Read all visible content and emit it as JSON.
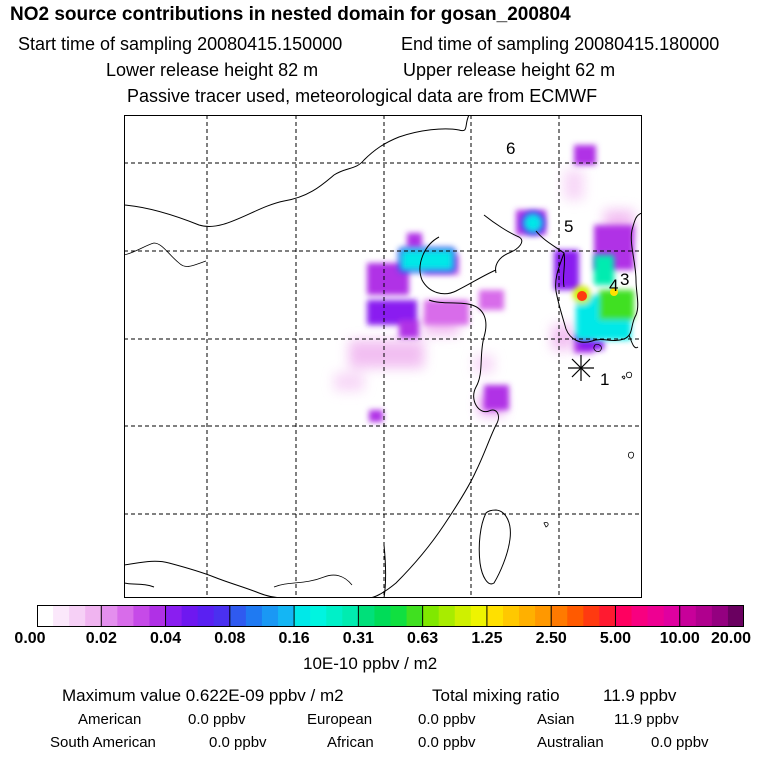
{
  "header": {
    "title": "NO2 source contributions in nested domain for gosan_200804",
    "start_label": "Start time of sampling 20080415.150000",
    "end_label": "End time of sampling 20080415.180000",
    "lower_height": "Lower release height   82 m",
    "upper_height": "Upper release height   62 m",
    "tracer_note": "Passive tracer used, meteorological data are from ECMWF"
  },
  "map": {
    "markers": [
      {
        "label": "1",
        "type": "receptor"
      },
      {
        "label": "3",
        "type": "source"
      },
      {
        "label": "4",
        "type": "source"
      },
      {
        "label": "5",
        "type": "source"
      },
      {
        "label": "6",
        "type": "source"
      }
    ]
  },
  "colorbar": {
    "ticks": [
      "0.00",
      "0.02",
      "0.04",
      "0.08",
      "0.16",
      "0.31",
      "0.63",
      "1.25",
      "2.50",
      "5.00",
      "10.00",
      "20.00"
    ],
    "colors": [
      "#ffffff",
      "#fbe8fb",
      "#f6d0f6",
      "#f0b4f0",
      "#e48fee",
      "#d86cea",
      "#c64ae8",
      "#b030e6",
      "#8a1ef0",
      "#6e18f0",
      "#5a20f2",
      "#4a30f0",
      "#2f5af0",
      "#1f7af2",
      "#1a98f4",
      "#14b6f4",
      "#00e8e8",
      "#00f4e0",
      "#00f0c8",
      "#00ecb0",
      "#00e07a",
      "#00dc58",
      "#10e040",
      "#40e020",
      "#80e800",
      "#a8ec00",
      "#cff000",
      "#eef400",
      "#ffe000",
      "#ffc800",
      "#ffb000",
      "#ff9800",
      "#ff7a00",
      "#ff5a00",
      "#ff3a10",
      "#ff1a30",
      "#ff0060",
      "#f80080",
      "#ee0092",
      "#e000a0",
      "#c8009a",
      "#b0008e",
      "#940080",
      "#6a0060"
    ],
    "units": "10E-10 ppbv / m2"
  },
  "footer": {
    "max_value": "Maximum value  0.622E-09 ppbv / m2",
    "total_label": "Total mixing ratio",
    "total_value": "11.9 ppbv",
    "regions": [
      {
        "name": "American",
        "value": "0.0 ppbv"
      },
      {
        "name": "European",
        "value": "0.0 ppbv"
      },
      {
        "name": "Asian",
        "value": "11.9 ppbv"
      },
      {
        "name": "South American",
        "value": "0.0 ppbv"
      },
      {
        "name": "African",
        "value": "0.0 ppbv"
      },
      {
        "name": "Australian",
        "value": "0.0 ppbv"
      }
    ]
  }
}
